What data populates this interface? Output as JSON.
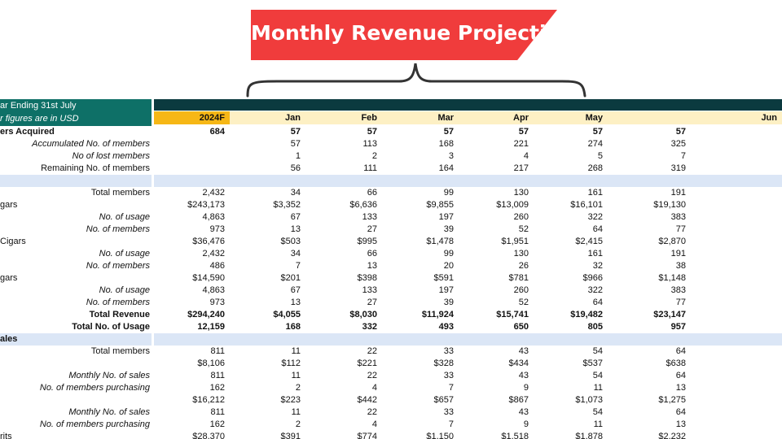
{
  "banner": {
    "title": "Monthly Revenue Projection"
  },
  "sheet": {
    "header_line1": "ar Ending 31st July",
    "header_line2": "r figures are in USD",
    "columns": [
      "2024F",
      "Jan",
      "Feb",
      "Mar",
      "Apr",
      "May",
      "Jun"
    ],
    "rows": [
      {
        "label": "ers Acquired",
        "style": "bold-left",
        "values": [
          "684",
          "57",
          "57",
          "57",
          "57",
          "57",
          "57"
        ]
      },
      {
        "label": "Accumulated No. of members",
        "style": "italic",
        "values": [
          "",
          "57",
          "113",
          "168",
          "221",
          "274",
          "325"
        ]
      },
      {
        "label": "No of lost members",
        "style": "italic",
        "values": [
          "",
          "1",
          "2",
          "3",
          "4",
          "5",
          "7"
        ]
      },
      {
        "label": "Remaining No. of members",
        "style": "normal",
        "values": [
          "",
          "56",
          "111",
          "164",
          "217",
          "268",
          "319"
        ]
      },
      {
        "label": "",
        "style": "section",
        "values": [
          "",
          "",
          "",
          "",
          "",
          "",
          ""
        ]
      },
      {
        "label": "Total members",
        "style": "normal",
        "values": [
          "2,432",
          "34",
          "66",
          "99",
          "130",
          "161",
          "191"
        ]
      },
      {
        "label": "gars",
        "style": "left",
        "values": [
          "$243,173",
          "$3,352",
          "$6,636",
          "$9,855",
          "$13,009",
          "$16,101",
          "$19,130"
        ]
      },
      {
        "label": "No. of usage",
        "style": "italic",
        "values": [
          "4,863",
          "67",
          "133",
          "197",
          "260",
          "322",
          "383"
        ]
      },
      {
        "label": "No. of members",
        "style": "italic",
        "values": [
          "973",
          "13",
          "27",
          "39",
          "52",
          "64",
          "77"
        ]
      },
      {
        "label": "Cigars",
        "style": "left",
        "values": [
          "$36,476",
          "$503",
          "$995",
          "$1,478",
          "$1,951",
          "$2,415",
          "$2,870"
        ]
      },
      {
        "label": "No. of usage",
        "style": "italic",
        "values": [
          "2,432",
          "34",
          "66",
          "99",
          "130",
          "161",
          "191"
        ]
      },
      {
        "label": "No. of members",
        "style": "italic",
        "values": [
          "486",
          "7",
          "13",
          "20",
          "26",
          "32",
          "38"
        ]
      },
      {
        "label": "gars",
        "style": "left",
        "values": [
          "$14,590",
          "$201",
          "$398",
          "$591",
          "$781",
          "$966",
          "$1,148"
        ]
      },
      {
        "label": "No. of usage",
        "style": "italic",
        "values": [
          "4,863",
          "67",
          "133",
          "197",
          "260",
          "322",
          "383"
        ]
      },
      {
        "label": "No. of members",
        "style": "italic",
        "values": [
          "973",
          "13",
          "27",
          "39",
          "52",
          "64",
          "77"
        ]
      },
      {
        "label": "Total Revenue",
        "style": "bold",
        "values": [
          "$294,240",
          "$4,055",
          "$8,030",
          "$11,924",
          "$15,741",
          "$19,482",
          "$23,147"
        ]
      },
      {
        "label": "Total No. of Usage",
        "style": "bold",
        "values": [
          "12,159",
          "168",
          "332",
          "493",
          "650",
          "805",
          "957"
        ]
      },
      {
        "label": "ales",
        "style": "section",
        "values": [
          "",
          "",
          "",
          "",
          "",
          "",
          ""
        ]
      },
      {
        "label": "Total members",
        "style": "normal",
        "values": [
          "811",
          "11",
          "22",
          "33",
          "43",
          "54",
          "64"
        ]
      },
      {
        "label": "",
        "style": "normal",
        "values": [
          "$8,106",
          "$112",
          "$221",
          "$328",
          "$434",
          "$537",
          "$638"
        ]
      },
      {
        "label": "Monthly No. of sales",
        "style": "italic",
        "values": [
          "811",
          "11",
          "22",
          "33",
          "43",
          "54",
          "64"
        ]
      },
      {
        "label": "No. of members purchasing",
        "style": "italic",
        "values": [
          "162",
          "2",
          "4",
          "7",
          "9",
          "11",
          "13"
        ]
      },
      {
        "label": "",
        "style": "normal",
        "values": [
          "$16,212",
          "$223",
          "$442",
          "$657",
          "$867",
          "$1,073",
          "$1,275"
        ]
      },
      {
        "label": "Monthly No. of sales",
        "style": "italic",
        "values": [
          "811",
          "11",
          "22",
          "33",
          "43",
          "54",
          "64"
        ]
      },
      {
        "label": "No. of members purchasing",
        "style": "italic",
        "values": [
          "162",
          "2",
          "4",
          "7",
          "9",
          "11",
          "13"
        ]
      },
      {
        "label": "rits",
        "style": "left",
        "values": [
          "$28,370",
          "$391",
          "$774",
          "$1,150",
          "$1,518",
          "$1,878",
          "$2,232"
        ]
      }
    ]
  }
}
